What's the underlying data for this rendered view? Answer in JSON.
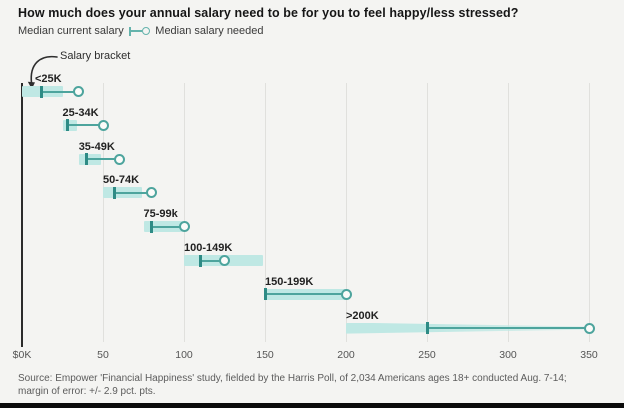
{
  "header": {
    "title": "How much does your annual salary need to be for you to feel happy/less stressed?"
  },
  "legend": {
    "current_label": "Median current salary",
    "needed_label": "Median salary needed"
  },
  "annotation": {
    "label": "Salary bracket"
  },
  "chart_data": {
    "type": "dumbbell",
    "title": "How much does your annual salary need to be for you to feel happy/less stressed?",
    "categories": [
      "<25K",
      "25-34K",
      "35-49K",
      "50-74K",
      "75-99k",
      "100-149K",
      "150-199K",
      ">200K"
    ],
    "bracket_ranges_thousands": [
      [
        0,
        25
      ],
      [
        25,
        34
      ],
      [
        35,
        49
      ],
      [
        50,
        74
      ],
      [
        75,
        99
      ],
      [
        100,
        149
      ],
      [
        150,
        200
      ],
      [
        200,
        350
      ]
    ],
    "series": [
      {
        "name": "Median current salary",
        "marker": "tick",
        "values": [
          12,
          28,
          40,
          57,
          80,
          110,
          150,
          250
        ]
      },
      {
        "name": "Median salary needed",
        "marker": "circle",
        "values": [
          35,
          50,
          60,
          80,
          100,
          125,
          200,
          350
        ]
      }
    ],
    "x_tick_values": [
      0,
      50,
      100,
      150,
      200,
      250,
      300,
      350
    ],
    "x_tick_labels": [
      "$0K",
      "50",
      "100",
      "150",
      "200",
      "250",
      "300",
      "350"
    ],
    "xlim": [
      0,
      370
    ],
    "grid": "vertical",
    "legend_position": "top-left",
    "open_ended_last_bracket": true,
    "colors": {
      "band": "#bfe8e4",
      "line": "#4da49d",
      "tick": "#2e8b85",
      "circle_fill": "#fbfbf9",
      "background": "#f4f4f2"
    }
  },
  "footer": {
    "source_line1": "Source: Empower 'Financial Happiness' study, fielded by the Harris Poll, of 2,034 Americans ages 18+ conducted Aug. 7-14;",
    "source_line2": "margin of error: +/- 2.9 pct. pts."
  }
}
